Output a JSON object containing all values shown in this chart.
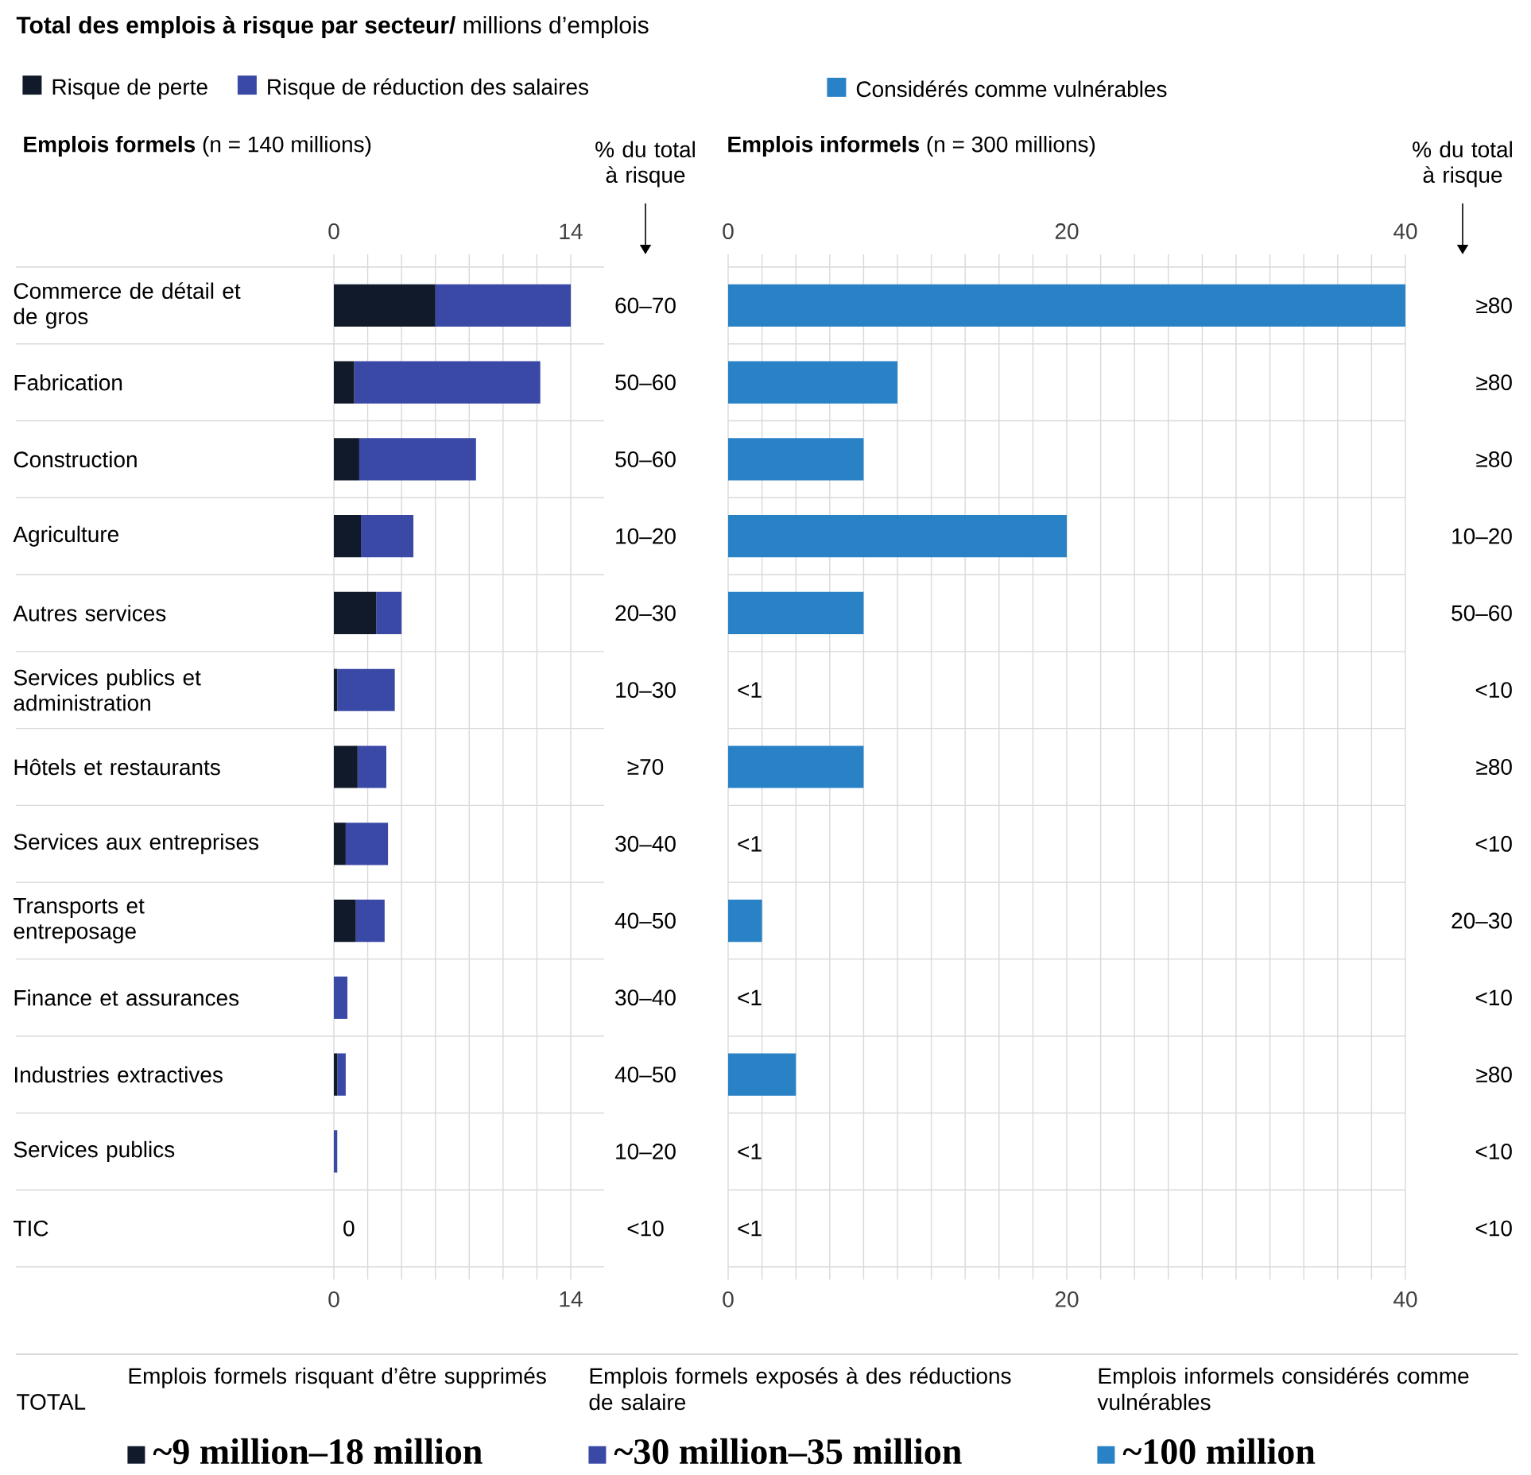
{
  "chart_data": [
    {
      "type": "bar",
      "orientation": "horizontal",
      "stacked": true,
      "title": "**Total des emplois à risque par secteur/** millions d’emplois",
      "subtitle": "**Emplois formels** (n = 140 millions)",
      "categories": [
        "Commerce de détail et de gros",
        "Fabrication",
        "Construction",
        "Agriculture",
        "Autres services",
        "Services publics et administration",
        "Hôtels et restaurants",
        "Services aux entreprises",
        "Transports et entreposage",
        "Finance et assurances",
        "Industries extractives",
        "Services publics",
        "TIC"
      ],
      "series": [
        {
          "name": "Risque de perte",
          "color": "#111a2b",
          "values": [
            6,
            1.2,
            1.5,
            1.6,
            2.5,
            0.2,
            1.4,
            0.7,
            1.3,
            0,
            0.2,
            0,
            0
          ],
          "value_labels": [
            null,
            null,
            null,
            null,
            null,
            null,
            null,
            null,
            null,
            null,
            null,
            null,
            "0"
          ]
        },
        {
          "name": "Risque de réduction des salaires",
          "color": "#3a48a6",
          "values": [
            8,
            11,
            6.9,
            3.1,
            1.5,
            3.4,
            1.7,
            2.5,
            1.7,
            0.8,
            0.5,
            0.2,
            0
          ]
        }
      ],
      "xlim": [
        0,
        14
      ],
      "xticks": [
        0,
        {
          "value": 2,
          "label": null
        },
        {
          "value": 4,
          "label": null
        },
        {
          "value": 6,
          "label": null
        },
        {
          "value": 8,
          "label": null
        },
        {
          "value": 10,
          "label": null
        },
        {
          "value": 12,
          "label": null
        },
        14
      ],
      "x2lim": [
        0,
        14
      ],
      "x2ticks": [
        0,
        {
          "value": 2,
          "label": null
        },
        {
          "value": 4,
          "label": null
        },
        {
          "value": 6,
          "label": null
        },
        {
          "value": 8,
          "label": null
        },
        {
          "value": 10,
          "label": null
        },
        {
          "value": 12,
          "label": null
        },
        14
      ],
      "grid": true,
      "legend": "top left",
      "annotations": [
        "% du total à risque",
        "60–70",
        "50–60",
        "50–60",
        "10–20",
        "20–30",
        "10–30",
        "≥70",
        "30–40",
        "40–50",
        "30–40",
        "40–50",
        "10–20",
        "<10"
      ]
    },
    {
      "type": "bar",
      "orientation": "horizontal",
      "subtitle": "**Emplois informels** (n = 300 millions)",
      "categories": [
        null,
        null,
        null,
        null,
        null,
        null,
        null,
        null,
        null,
        null,
        null,
        null,
        null
      ],
      "series": [
        {
          "name": "Considérés comme vulnérables",
          "color": "#2a82c6",
          "values": [
            40,
            10,
            8,
            20,
            8,
            null,
            8,
            null,
            2,
            null,
            4,
            null,
            null
          ],
          "value_labels": [
            null,
            null,
            null,
            null,
            null,
            "<1",
            null,
            "<1",
            null,
            "<1",
            null,
            "<1",
            "<1"
          ]
        }
      ],
      "xlim": [
        0,
        40
      ],
      "xticks": [
        0,
        {
          "value": 2,
          "label": null
        },
        {
          "value": 4,
          "label": null
        },
        {
          "value": 6,
          "label": null
        },
        {
          "value": 8,
          "label": null
        },
        {
          "value": 10,
          "label": null
        },
        {
          "value": 12,
          "label": null
        },
        {
          "value": 14,
          "label": null
        },
        {
          "value": 16,
          "label": null
        },
        {
          "value": 18,
          "label": null
        },
        20,
        {
          "value": 22,
          "label": null
        },
        {
          "value": 24,
          "label": null
        },
        {
          "value": 26,
          "label": null
        },
        {
          "value": 28,
          "label": null
        },
        {
          "value": 30,
          "label": null
        },
        {
          "value": 32,
          "label": null
        },
        {
          "value": 34,
          "label": null
        },
        {
          "value": 36,
          "label": null
        },
        {
          "value": 38,
          "label": null
        },
        40
      ],
      "x2lim": [
        0,
        40
      ],
      "x2ticks": [
        0,
        {
          "value": 2,
          "label": null
        },
        {
          "value": 4,
          "label": null
        },
        {
          "value": 6,
          "label": null
        },
        {
          "value": 8,
          "label": null
        },
        {
          "value": 10,
          "label": null
        },
        {
          "value": 12,
          "label": null
        },
        {
          "value": 14,
          "label": null
        },
        {
          "value": 16,
          "label": null
        },
        {
          "value": 18,
          "label": null
        },
        20,
        {
          "value": 22,
          "label": null
        },
        {
          "value": 24,
          "label": null
        },
        {
          "value": 26,
          "label": null
        },
        {
          "value": 28,
          "label": null
        },
        {
          "value": 30,
          "label": null
        },
        {
          "value": 32,
          "label": null
        },
        {
          "value": 34,
          "label": null
        },
        {
          "value": 36,
          "label": null
        },
        {
          "value": 38,
          "label": null
        },
        40
      ],
      "grid": true,
      "legend": "top left",
      "tick_labels": "x",
      "annotations": [
        "% du total à risque",
        "≥80",
        "≥80",
        "≥80",
        "10–20",
        "50–60",
        "<10",
        "≥80",
        "<10",
        "20–30",
        "<10",
        "≥80",
        "<10",
        "<10"
      ]
    },
    {
      "type": "other",
      "annotations": [
        "TOTAL",
        "Emplois formels risquant d’être supprimés",
        "~9 million–18 million",
        "Emplois formels exposés à des réductions de salaire",
        "~30 million–35 million",
        "Emplois informels considérés comme vulnérables",
        "~100 million"
      ],
      "colors": [
        "#111a2b",
        "#3a48a6",
        "#2a82c6"
      ]
    }
  ]
}
